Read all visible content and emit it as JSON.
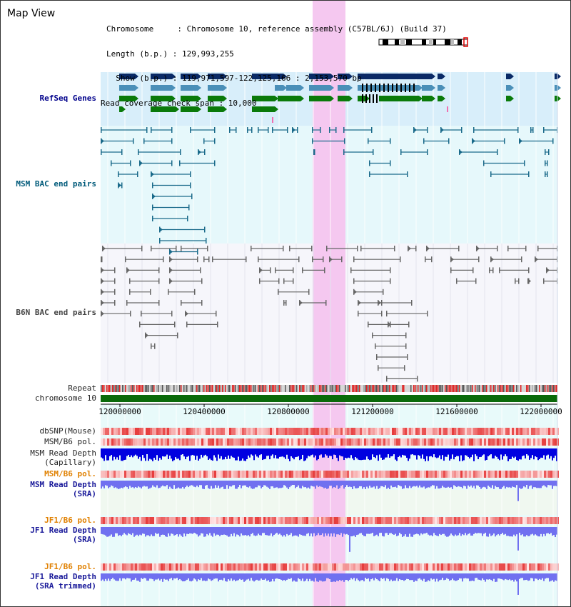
{
  "title": "Map View",
  "header": {
    "line1": "Chromosome     : Chromosome 10, reference assembly (C57BL/6J) (Build 37)",
    "line2": "Length (b.p.) : 129,993,255",
    "line3": "  Show (b.p.) : 119,971,597-122,125,166 : 2,153,570 bp",
    "line4": "Read coverage check span : 10,000"
  },
  "tracks": {
    "refseq": "RefSeq Genes",
    "msm_bac": "MSM BAC end pairs",
    "b6n_bac": "B6N BAC end pairs",
    "repeat": "Repeat",
    "chromosome": "chromosome 10",
    "dbsnp": "dbSNP(Mouse)",
    "msm_pol": "MSM/B6 pol.",
    "msm_depth_cap_1": "MSM Read Depth",
    "msm_depth_cap_2": "(Capillary)",
    "msm_pol2": "MSM/B6 pol.",
    "msm_depth_sra_1": "MSM Read Depth",
    "msm_depth_sra_2": "(SRA)",
    "jf1_pol": "JF1/B6 pol.",
    "jf1_depth_1": "JF1 Read Depth",
    "jf1_depth_2": "(SRA)",
    "jf1_pol2": "JF1/B6 pol.",
    "jf1_trim_1": "JF1 Read Depth",
    "jf1_trim_2": "(SRA trimmed)"
  },
  "axis_ticks": [
    "120000000",
    "120400000",
    "120800000",
    "121200000",
    "121600000",
    "122000000"
  ],
  "colors": {
    "highlight": "#f5c8f0",
    "gene_dark": "#0a2a66",
    "gene_mid": "#4a8fb8",
    "gene_green": "#0a7a0a",
    "bac_msm": "#1a6a8a",
    "bac_b6n": "#666666",
    "chromosome_bar": "#0a6a0a",
    "depth_blue": "#0000e0",
    "depth_light": "#7070f0"
  }
}
